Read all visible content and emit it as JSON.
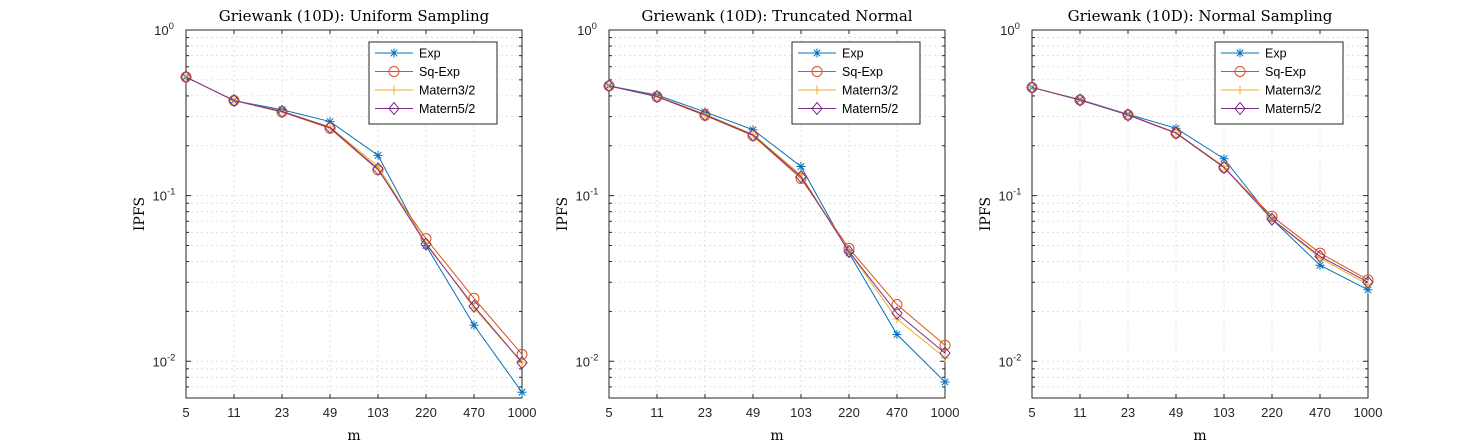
{
  "chart_data": [
    {
      "type": "line",
      "title": "Griewank (10D): Uniform Sampling",
      "xlabel": "m",
      "ylabel": "IPFS",
      "y_scale": "log",
      "ylim": [
        0.006,
        1
      ],
      "categories": [
        "5",
        "11",
        "23",
        "49",
        "103",
        "220",
        "470",
        "1000"
      ],
      "yticks": [
        {
          "value": 1,
          "base": "10",
          "exp": "0"
        },
        {
          "value": 0.1,
          "base": "10",
          "exp": "-1"
        },
        {
          "value": 0.01,
          "base": "10",
          "exp": "-2"
        }
      ],
      "grid": true,
      "legend_position": "top-right",
      "series": [
        {
          "name": "Exp",
          "color": "#0072BD",
          "marker": "asterisk",
          "values": [
            0.52,
            0.375,
            0.33,
            0.28,
            0.175,
            0.05,
            0.0165,
            0.0065
          ]
        },
        {
          "name": "Sq-Exp",
          "color": "#D95319",
          "marker": "circle",
          "values": [
            0.52,
            0.375,
            0.32,
            0.255,
            0.143,
            0.055,
            0.024,
            0.011
          ]
        },
        {
          "name": "Matern3/2",
          "color": "#EDB120",
          "marker": "plus",
          "values": [
            0.52,
            0.375,
            0.323,
            0.26,
            0.15,
            0.052,
            0.021,
            0.0098
          ]
        },
        {
          "name": "Matern5/2",
          "color": "#7E2F8E",
          "marker": "diamond",
          "values": [
            0.52,
            0.375,
            0.322,
            0.258,
            0.145,
            0.051,
            0.0215,
            0.0098
          ]
        }
      ]
    },
    {
      "type": "line",
      "title": "Griewank (10D): Truncated Normal",
      "xlabel": "m",
      "ylabel": "IPFS",
      "y_scale": "log",
      "ylim": [
        0.006,
        1
      ],
      "categories": [
        "5",
        "11",
        "23",
        "49",
        "103",
        "220",
        "470",
        "1000"
      ],
      "yticks": [
        {
          "value": 1,
          "base": "10",
          "exp": "0"
        },
        {
          "value": 0.1,
          "base": "10",
          "exp": "-1"
        },
        {
          "value": 0.01,
          "base": "10",
          "exp": "-2"
        }
      ],
      "grid": true,
      "legend_position": "top-right",
      "series": [
        {
          "name": "Exp",
          "color": "#0072BD",
          "marker": "asterisk",
          "values": [
            0.46,
            0.405,
            0.32,
            0.25,
            0.15,
            0.045,
            0.0145,
            0.0075
          ]
        },
        {
          "name": "Sq-Exp",
          "color": "#D95319",
          "marker": "circle",
          "values": [
            0.46,
            0.395,
            0.305,
            0.23,
            0.127,
            0.048,
            0.022,
            0.0125
          ]
        },
        {
          "name": "Matern3/2",
          "color": "#EDB120",
          "marker": "plus",
          "values": [
            0.46,
            0.398,
            0.31,
            0.235,
            0.133,
            0.046,
            0.018,
            0.0105
          ]
        },
        {
          "name": "Matern5/2",
          "color": "#7E2F8E",
          "marker": "diamond",
          "values": [
            0.46,
            0.397,
            0.308,
            0.232,
            0.13,
            0.046,
            0.0195,
            0.0112
          ]
        }
      ]
    },
    {
      "type": "line",
      "title": "Griewank (10D): Normal Sampling",
      "xlabel": "m",
      "ylabel": "IPFS",
      "y_scale": "log",
      "ylim": [
        0.006,
        1
      ],
      "categories": [
        "5",
        "11",
        "23",
        "49",
        "103",
        "220",
        "470",
        "1000"
      ],
      "yticks": [
        {
          "value": 1,
          "base": "10",
          "exp": "0"
        },
        {
          "value": 0.1,
          "base": "10",
          "exp": "-1"
        },
        {
          "value": 0.01,
          "base": "10",
          "exp": "-2"
        }
      ],
      "grid": true,
      "legend_position": "top-right",
      "series": [
        {
          "name": "Exp",
          "color": "#0072BD",
          "marker": "asterisk",
          "values": [
            0.45,
            0.38,
            0.31,
            0.255,
            0.167,
            0.072,
            0.038,
            0.027
          ]
        },
        {
          "name": "Sq-Exp",
          "color": "#D95319",
          "marker": "circle",
          "values": [
            0.45,
            0.378,
            0.307,
            0.238,
            0.148,
            0.075,
            0.045,
            0.031
          ]
        },
        {
          "name": "Matern3/2",
          "color": "#EDB120",
          "marker": "plus",
          "values": [
            0.45,
            0.378,
            0.308,
            0.24,
            0.15,
            0.072,
            0.042,
            0.029
          ]
        },
        {
          "name": "Matern5/2",
          "color": "#7E2F8E",
          "marker": "diamond",
          "values": [
            0.45,
            0.378,
            0.307,
            0.239,
            0.148,
            0.072,
            0.043,
            0.03
          ]
        }
      ]
    }
  ]
}
